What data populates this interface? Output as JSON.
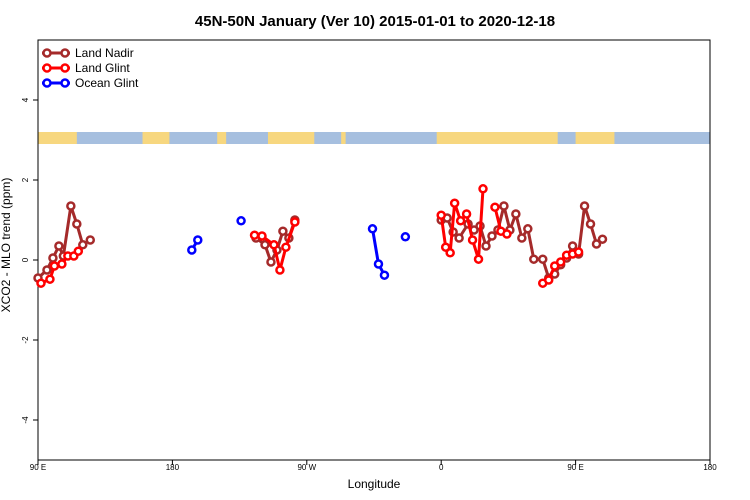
{
  "chart_data": {
    "type": "line",
    "title": "45N-50N January (Ver 10)   2015-01-01 to 2020-12-18",
    "xlabel": "Longitude",
    "ylabel": "XCO2 - MLO trend (ppm)",
    "xlim": [
      90,
      450
    ],
    "ylim": [
      -5,
      5.5
    ],
    "x_tick_values": [
      90,
      180,
      270,
      360,
      450
    ],
    "x_tick_labels": [
      "90 E",
      "180",
      "90 W",
      "0",
      "90 E",
      "180"
    ],
    "x_tick_positions": [
      90,
      180,
      270,
      360,
      450,
      540
    ],
    "y_tick_values": [
      -4,
      -2,
      0,
      2,
      4
    ],
    "y_tick_labels": [
      "-4",
      "-2",
      "0",
      "2",
      "4"
    ],
    "legend_position": "top-left",
    "land_ocean_band": {
      "y_bottom": 2.9,
      "y_top": 3.2,
      "land_color": "#f7d77f",
      "ocean_color": "#a6bfdf"
    },
    "series": [
      {
        "name": "Land Nadir",
        "color": "#a52a2a",
        "segments": [
          [
            [
              90,
              -0.45
            ],
            [
              96,
              -0.25
            ],
            [
              100,
              0.05
            ],
            [
              104,
              0.35
            ],
            [
              107,
              0.1
            ],
            [
              112,
              1.35
            ],
            [
              116,
              0.9
            ],
            [
              120,
              0.38
            ],
            [
              125,
              0.5
            ]
          ],
          [
            [
              236,
              0.55
            ],
            [
              242,
              0.38
            ],
            [
              246,
              -0.05
            ],
            [
              250,
              0.25
            ],
            [
              254,
              0.72
            ],
            [
              258,
              0.55
            ],
            [
              262,
              1.0
            ]
          ],
          [
            [
              360,
              1.0
            ],
            [
              364,
              1.05
            ],
            [
              368,
              0.7
            ],
            [
              372,
              0.55
            ],
            [
              378,
              0.9
            ],
            [
              382,
              0.75
            ],
            [
              386,
              0.85
            ],
            [
              390,
              0.35
            ],
            [
              394,
              0.6
            ],
            [
              398,
              0.75
            ],
            [
              402,
              1.35
            ],
            [
              406,
              0.75
            ],
            [
              410,
              1.15
            ],
            [
              414,
              0.55
            ],
            [
              418,
              0.78
            ],
            [
              422,
              0.02
            ],
            [
              428,
              0.02
            ],
            [
              432,
              -0.45
            ],
            [
              436,
              -0.35
            ],
            [
              440,
              -0.12
            ],
            [
              444,
              0.05
            ],
            [
              448,
              0.35
            ],
            [
              452,
              0.15
            ],
            [
              456,
              1.35
            ],
            [
              460,
              0.9
            ],
            [
              464,
              0.4
            ],
            [
              468,
              0.52
            ]
          ]
        ]
      },
      {
        "name": "Land Glint",
        "color": "#ff0000",
        "segments": [
          [
            [
              92,
              -0.58
            ],
            [
              98,
              -0.48
            ],
            [
              101,
              -0.15
            ],
            [
              106,
              -0.1
            ],
            [
              110,
              0.1
            ],
            [
              114,
              0.1
            ],
            [
              117,
              0.22
            ]
          ],
          [
            [
              235,
              0.62
            ],
            [
              240,
              0.6
            ],
            [
              248,
              0.38
            ],
            [
              252,
              -0.25
            ],
            [
              256,
              0.32
            ],
            [
              262,
              0.95
            ]
          ],
          [
            [
              360,
              1.12
            ],
            [
              363,
              0.32
            ],
            [
              366,
              0.18
            ],
            [
              369,
              1.42
            ],
            [
              373,
              0.98
            ],
            [
              377,
              1.15
            ],
            [
              381,
              0.5
            ],
            [
              385,
              0.02
            ],
            [
              388,
              1.78
            ]
          ],
          [
            [
              396,
              1.32
            ],
            [
              400,
              0.72
            ],
            [
              404,
              0.65
            ]
          ],
          [
            [
              428,
              -0.58
            ],
            [
              432,
              -0.5
            ],
            [
              436,
              -0.15
            ],
            [
              440,
              -0.05
            ],
            [
              444,
              0.12
            ],
            [
              448,
              0.15
            ],
            [
              452,
              0.2
            ]
          ]
        ]
      },
      {
        "name": "Ocean Glint",
        "color": "#0000ff",
        "segments": [
          [
            [
              193,
              0.25
            ],
            [
              197,
              0.5
            ]
          ],
          [
            [
              226,
              0.98
            ]
          ],
          [
            [
              314,
              0.78
            ],
            [
              318,
              -0.1
            ],
            [
              322,
              -0.38
            ]
          ],
          [
            [
              336,
              0.58
            ]
          ]
        ]
      }
    ]
  }
}
